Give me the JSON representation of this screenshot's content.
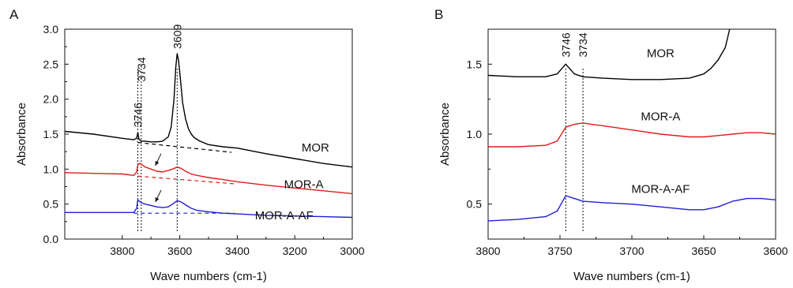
{
  "chart_data": [
    {
      "type": "line",
      "panel_label": "A",
      "xlabel": "Wave numbers (cm-1)",
      "ylabel": "Absorbance",
      "xlim": [
        4000,
        3000
      ],
      "x_reversed": true,
      "ylim": [
        0.0,
        3.0
      ],
      "x_ticks": [
        "3800",
        "3600",
        "3400",
        "3200",
        "3000"
      ],
      "y_ticks": [
        "0.0",
        "0.5",
        "1.0",
        "1.5",
        "2.0",
        "2.5",
        "3.0"
      ],
      "grid": false,
      "series": [
        {
          "name": "MOR",
          "color": "#000000",
          "x": [
            4000,
            3900,
            3800,
            3760,
            3750,
            3746,
            3742,
            3735,
            3720,
            3700,
            3680,
            3660,
            3640,
            3630,
            3620,
            3614,
            3609,
            3604,
            3598,
            3590,
            3580,
            3570,
            3560,
            3550,
            3530,
            3500,
            3450,
            3400,
            3300,
            3200,
            3100,
            3000
          ],
          "y": [
            1.54,
            1.5,
            1.44,
            1.42,
            1.44,
            1.52,
            1.43,
            1.4,
            1.4,
            1.39,
            1.39,
            1.4,
            1.46,
            1.6,
            2.0,
            2.45,
            2.65,
            2.55,
            2.3,
            1.95,
            1.72,
            1.58,
            1.5,
            1.45,
            1.4,
            1.35,
            1.32,
            1.3,
            1.22,
            1.15,
            1.08,
            1.03
          ]
        },
        {
          "name": "MOR-A",
          "color": "#e31a1c",
          "x": [
            4000,
            3900,
            3800,
            3760,
            3750,
            3746,
            3740,
            3734,
            3720,
            3700,
            3680,
            3660,
            3640,
            3625,
            3609,
            3595,
            3580,
            3560,
            3540,
            3500,
            3450,
            3400,
            3300,
            3200,
            3100,
            3000
          ],
          "y": [
            0.95,
            0.94,
            0.93,
            0.91,
            0.96,
            1.06,
            1.08,
            1.07,
            1.03,
            1.0,
            0.97,
            0.96,
            0.98,
            1.0,
            1.03,
            1.01,
            0.97,
            0.93,
            0.91,
            0.88,
            0.85,
            0.82,
            0.77,
            0.73,
            0.69,
            0.65
          ]
        },
        {
          "name": "MOR-A-AF",
          "color": "#1f1fd6",
          "x": [
            4000,
            3900,
            3800,
            3760,
            3750,
            3746,
            3740,
            3734,
            3720,
            3700,
            3680,
            3660,
            3640,
            3625,
            3609,
            3595,
            3580,
            3560,
            3540,
            3500,
            3450,
            3400,
            3300,
            3200,
            3100,
            3000
          ],
          "y": [
            0.38,
            0.38,
            0.38,
            0.38,
            0.44,
            0.56,
            0.54,
            0.52,
            0.5,
            0.48,
            0.46,
            0.45,
            0.46,
            0.5,
            0.55,
            0.53,
            0.49,
            0.44,
            0.41,
            0.39,
            0.37,
            0.36,
            0.34,
            0.33,
            0.32,
            0.31
          ]
        }
      ],
      "baselines": [
        {
          "color": "#000000",
          "x": [
            3746,
            3420
          ],
          "y": [
            1.38,
            1.24
          ]
        },
        {
          "color": "#e31a1c",
          "x": [
            3746,
            3410
          ],
          "y": [
            0.9,
            0.79
          ]
        },
        {
          "color": "#1f1fd6",
          "x": [
            3760,
            3410
          ],
          "y": [
            0.37,
            0.37
          ]
        }
      ],
      "vlines": [
        3746,
        3734,
        3609
      ],
      "peak_labels": [
        {
          "text": "3746",
          "x": 3746,
          "y": 1.6
        },
        {
          "text": "3734",
          "x": 3734,
          "y": 2.25
        },
        {
          "text": "3609",
          "x": 3609,
          "y": 2.72
        }
      ],
      "arrows": [
        {
          "x_from": 3665,
          "y_from": 1.22,
          "x_to": 3685,
          "y_to": 1.05
        },
        {
          "x_from": 3665,
          "y_from": 0.7,
          "x_to": 3685,
          "y_to": 0.53
        }
      ],
      "series_labels": [
        {
          "text": "MOR",
          "x": 3080,
          "y": 1.25
        },
        {
          "text": "MOR-A",
          "x": 3100,
          "y": 0.73
        },
        {
          "text": "MOR-A-AF",
          "x": 3135,
          "y": 0.28
        }
      ]
    },
    {
      "type": "line",
      "panel_label": "B",
      "xlabel": "Wave numbers (cm-1)",
      "ylabel": "Absorbance",
      "xlim": [
        3800,
        3600
      ],
      "x_reversed": true,
      "ylim": [
        0.25,
        1.75
      ],
      "x_ticks": [
        "3800",
        "3750",
        "3700",
        "3650",
        "3600"
      ],
      "y_ticks": [
        "0.5",
        "1.0",
        "1.5"
      ],
      "grid": false,
      "series": [
        {
          "name": "MOR",
          "color": "#000000",
          "x": [
            3800,
            3780,
            3760,
            3752,
            3746,
            3740,
            3734,
            3720,
            3700,
            3680,
            3660,
            3650,
            3645,
            3640,
            3635,
            3632
          ],
          "y": [
            1.42,
            1.41,
            1.41,
            1.43,
            1.5,
            1.43,
            1.41,
            1.4,
            1.39,
            1.39,
            1.4,
            1.43,
            1.47,
            1.53,
            1.62,
            1.75
          ]
        },
        {
          "name": "MOR-A",
          "color": "#e31a1c",
          "x": [
            3800,
            3780,
            3760,
            3752,
            3746,
            3740,
            3734,
            3728,
            3720,
            3700,
            3680,
            3660,
            3650,
            3640,
            3630,
            3620,
            3610,
            3600
          ],
          "y": [
            0.91,
            0.91,
            0.92,
            0.95,
            1.05,
            1.07,
            1.08,
            1.07,
            1.06,
            1.03,
            1.0,
            0.98,
            0.98,
            0.99,
            1.0,
            1.01,
            1.01,
            1.0
          ]
        },
        {
          "name": "MOR-A-AF",
          "color": "#1f1fd6",
          "x": [
            3800,
            3780,
            3760,
            3752,
            3746,
            3740,
            3734,
            3720,
            3700,
            3680,
            3660,
            3650,
            3640,
            3630,
            3620,
            3610,
            3600
          ],
          "y": [
            0.38,
            0.39,
            0.41,
            0.45,
            0.56,
            0.54,
            0.52,
            0.51,
            0.5,
            0.48,
            0.46,
            0.46,
            0.48,
            0.52,
            0.54,
            0.54,
            0.53
          ]
        }
      ],
      "vlines": [
        3746,
        3734
      ],
      "peak_labels": [
        {
          "text": "3746",
          "x": 3746,
          "y": 1.55
        },
        {
          "text": "3734",
          "x": 3734,
          "y": 1.55
        }
      ],
      "series_labels": [
        {
          "text": "MOR",
          "x": 3680,
          "y": 1.55
        },
        {
          "text": "MOR-A",
          "x": 3680,
          "y": 1.1
        },
        {
          "text": "MOR-A-AF",
          "x": 3680,
          "y": 0.58
        }
      ]
    }
  ]
}
